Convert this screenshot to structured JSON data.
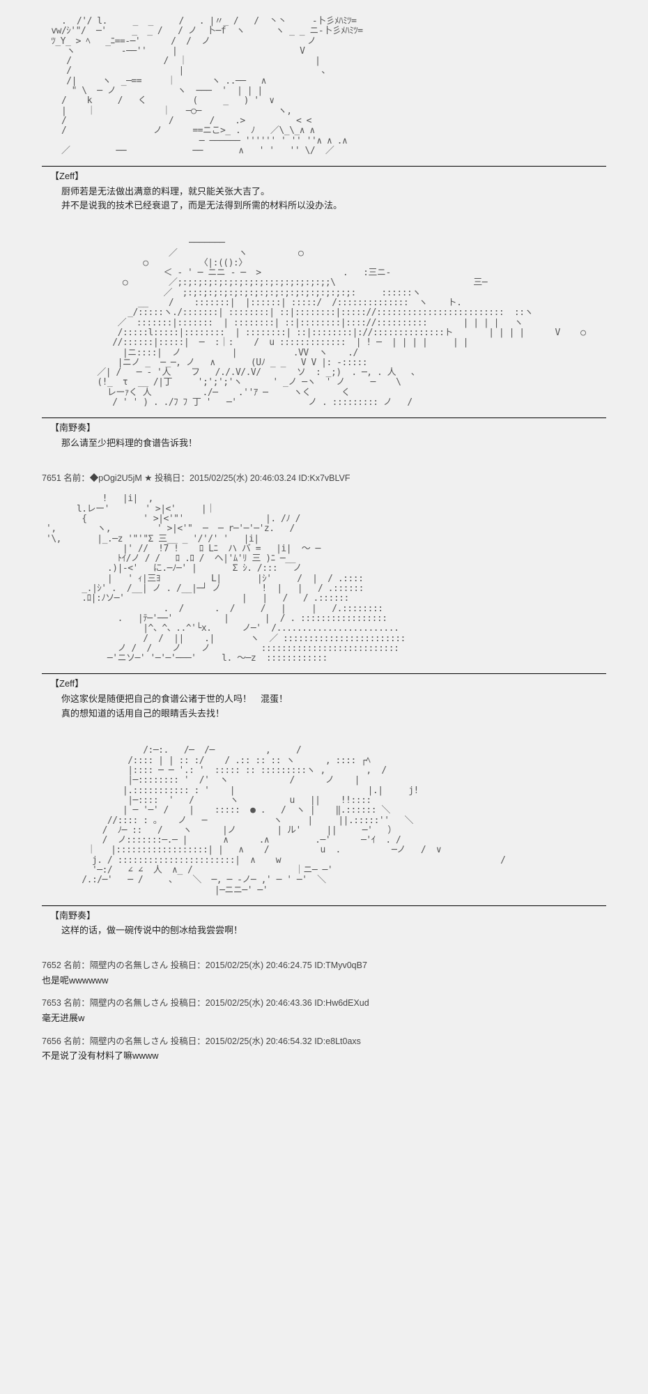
{
  "blocks": [
    {
      "speaker": "【Zeff】",
      "text": "厨师若是无法做出满意的料理，就只能关张大吉了。\n并不是说我的技术已经衰退了，而是无法得到所需的材料所以没办法。",
      "ascii": "   .  /'/ l.     _  _     /   . |〃_ /   /  丶丶     -卜彡ﾒﾊﾐﾂ=\n vw/ｼ'\"/  ─'     _  _ /   / ノ  卜─f  ヽ      ヽ _ _ ニ-卜彡ﾒﾊﾐﾂ=\n ﾂ_Y_ > ﾍ   _ﾆ==-─'      /  /  ノ                   ノ\n    ヽ         -──''     |                        V\n    /                  /  ｜                         |\n    /                     |                           ､\n    /|     ヽ  _─==     ｜       ヽ ..──   ∧\n     \" \\  ─ ノ            ヽ  ───  '  | | |\n   /    k     /   く         (     _   ) '  ∨\n   |    ｜             ｜   ─○─               ヽ,\n   /                    /       /    .>          < <\n   /                 ノ      ==ニこ>_ .  ﾉ   ／\\_\\_∧ ∧\n                              ─ ────── '''''' ' '' ''∧ ∧ .∧\n   ／         ──             ──       ∧   ' '   '' \\/  ／"
    },
    {
      "speaker": "【南野奏】",
      "text": "那么请至少把料理的食谱告诉我！",
      "ascii": "                            ─────── \n                        ／            ヽ          ○  \n                   ○          〈|:(():〉\n                       ＜ - ' ─ ニニ - ─  >                .   :三ニ-   \n               ○        ／;:;:;:;:;:;:;:;:;:;:;:;:;:;:;;\\                           三─\n                       ／  ;:;:;:;:;:;:;:;:;:;:;:;:;:;:;:;:;:     ::::::ヽ\n                  __    /    :::::::|  |::::::| :::::/  /::::::::::::::  ヽ    ト.\n                _/:::::ヽ./:::::::| ::::::::| ::|::::::::|::::://:::::::::::::::::::::::::  ::ヽ \n              ／  :::::::|:::::::  | ::::::::| ::|::::::::|:::://::::::::::       | | | |   ヽ    \n              /:::::l:::::|::::::::  | ::::::::| ::|::::::::|://::::::::::::::ト       | | | |      V    ○\n             //::::::|:::::|  ─  :｜:    /  u :::::::::::::  | ! ─  | | | |     | |\n               |ニ::::|  ノ          |           .VV  ヽ    ./       \n              |ニノ _  ─_─, ノ   ∧       (Uﾉ _ _   V V |: -:::::\n          ／| /   ─ - '人    フ   /./.V/.V/       ソ  : _;)  . ─, . 人   ､\n          (!_  τ  __ /|丁     ';';';'ヽ      ' _ノ ─ヽ  ' ノ     ─    \\\n            レーｧく 人          ./─    .''ｱ ─     ヽく      く\n             / ' ' ) . ./ﾌ ﾌ 丁 '   ─'              ノ . ::::::::: ノ   /"
    }
  ],
  "post_header": {
    "num": "7651",
    "name": "名前：◆pOgi2U5jM ★",
    "date": "投稿日：2015/02/25(水) 20:46:03.24",
    "id": "ID:Kx7vBLVF"
  },
  "blocks2": [
    {
      "speaker": "【Zeff】",
      "text": "你这家伙是随便把自己的食谱公诸于世的人吗！　混蛋！\n真的想知道的话用自己的眼睛舌头去找！",
      "ascii": "           !   |i|  ,\n      l.レー'       ' >|<'     |｜\n       {           ' >|<'\"'                |. /ﾉ /\n',        ヽ,         ' >|<'\"  ─  ─ r─'─'─'z.   /\n'\\,       |_.─z '\"'\"Σ 三__ _ '/'/' '   |i|\n               |' //  !7 !    ﾛ Lﾆ  ハ バ =   |i|  ～ ─\n              ﾄｲ/ノ / /   ﾛ .ﾛ /  ヘ|'ﾑ'ﾘ 三 )ﾆ ─__  \n            .)|-<'   に.─ﾉ─' |       Σ ｼ. /:::   ノ\n            |   ' ｨ|三ﾖ          L|       |ｼ'     /  |  / .::::\n       _.|ｼ' .  /__| ノ . /__|─┘ ノ        !  |   |   / .::::::\n       .ﾛ|:ﾉソ─'                       |   |   /   / .::::::\n                       .  /      .  /     /   |     |   /.:::::::: \n              .   |ﾃ─'──'          |       |  / . ::::::::::::::::: \n                   |^、^、..^'└x.      ノ─'  /........................ \n                   /  /  ||    .|       ヽ  ／ :::::::::::::::::::::::: \n              ノ /  /    ノ    ノ          :::::::::::::::::::::::::::  \n            ─'ニソ─' '─'─'───'     l. ～─z  ::::::::::::"
    },
    {
      "speaker": "【南野奏】",
      "text": "这样的话，做一碗传说中的刨冰给我尝尝啊！",
      "ascii": "                   /:─:.   /─  /─          ,     /\n                /:::: | | :: :/    / .:: :: :: ヽ      , :::: ┌ﾍ   \n                |:::: ─ ─ '.: '  ::::: :: :::::::::ヽ ,        ,  / \n                |─:::::::: '  /'  ヽ            /      ノ    |\n               |.::::::::::: : '    |                          |.|     j!   \n                |─::::  '   /       ヽ          u   ||    !!::::\n               | ─ '─' /    |    :::::  ● .   /  ヽ |    ‖.:::::: ＼\n            //:::: : ｡    ノ   ─             ヽ     |     ||.:::::''   ＼\n           /  ﾉ─ ::   /    ヽ      |ノ        | ル'     ||     ─'   ）\n           /  ノ:::::::─.─ |       ∧      .∧         .─'      ─'ｲ  . /\n        ｜   |::::::::::::::::::| |   ∧    /          u  .          ─ノ   /  ∨\n         j. / :::::::::::::::::::::::|  ∧    w                                           /\n         '─:/   ∠ ∠  人  ∧_ /                    ｜ニ─ ─'  \n       /.:/─'   ─ /     、   ＼  ─, ─ -ノ─ ,' ─ ' ─'  ＼\n                                 |─ニニ─' ─'"
    }
  ],
  "replies": [
    {
      "num": "7652",
      "name": "名前：隔壁内の名無しさん",
      "date": "投稿日：2015/02/25(水) 20:46:24.75",
      "id": "ID:TMyv0qB7",
      "body": "也是呢wwwwww"
    },
    {
      "num": "7653",
      "name": "名前：隔壁内の名無しさん",
      "date": "投稿日：2015/02/25(水) 20:46:43.36",
      "id": "ID:Hw6dEXud",
      "body": "毫无进展w"
    },
    {
      "num": "7656",
      "name": "名前：隔壁内の名無しさん",
      "date": "投稿日：2015/02/25(水) 20:46:54.32",
      "id": "ID:e8Lt0axs",
      "body": "不是说了没有材料了嘛wwww"
    }
  ]
}
